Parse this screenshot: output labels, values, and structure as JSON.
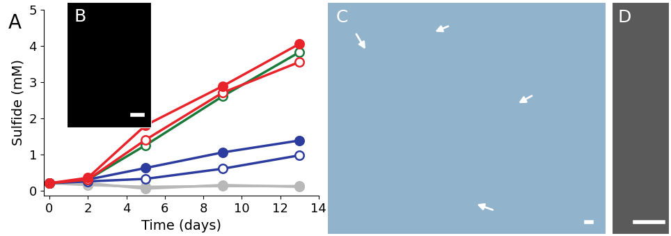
{
  "chart_data": {
    "type": "line",
    "panel_label": "A",
    "x_label": "Time (days)",
    "y_label": "Sulfide (mM)",
    "x": [
      0,
      2,
      5,
      9,
      13
    ],
    "xlim": [
      -0.3,
      14
    ],
    "xticks": [
      0,
      2,
      4,
      6,
      8,
      10,
      12,
      14
    ],
    "ylim": [
      -0.15,
      5
    ],
    "yticks": [
      0,
      1,
      2,
      3,
      4,
      5
    ],
    "grid": false,
    "tick_labels": true,
    "series": [
      {
        "color": "#b8b8b8",
        "marker": "open_circle",
        "values": [
          0.2,
          0.15,
          0.1,
          0.12,
          0.12
        ]
      },
      {
        "color": "#b8b8b8",
        "marker": "filled_circle",
        "values": [
          0.2,
          0.2,
          0.05,
          0.15,
          0.1
        ]
      },
      {
        "color": "#2b3b9e",
        "marker": "open_circle",
        "values": [
          0.2,
          0.25,
          0.32,
          0.6,
          0.97
        ]
      },
      {
        "color": "#2b3b9e",
        "marker": "filled_circle",
        "values": [
          0.2,
          0.3,
          0.62,
          1.05,
          1.38
        ]
      },
      {
        "color": "#1a7a3a",
        "marker": "open_circle",
        "values": [
          0.2,
          0.3,
          1.25,
          2.6,
          3.82
        ]
      },
      {
        "color": "#e8232a",
        "marker": "open_circle",
        "values": [
          0.2,
          0.3,
          1.4,
          2.7,
          3.55
        ]
      },
      {
        "color": "#e8232a",
        "marker": "filled_circle",
        "values": [
          0.2,
          0.35,
          1.8,
          2.88,
          4.05
        ]
      }
    ]
  },
  "images": [
    {
      "label": "B"
    },
    {
      "label": "C"
    },
    {
      "label": "D"
    }
  ]
}
